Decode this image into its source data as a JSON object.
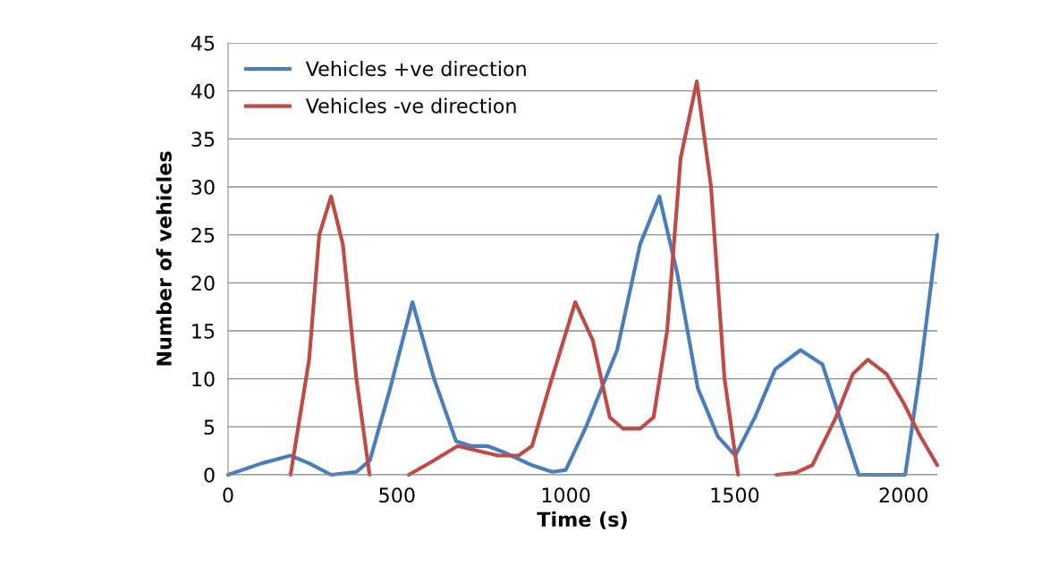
{
  "chart_data": {
    "type": "line",
    "xlabel": "Time (s)",
    "ylabel": "Number of vehicles",
    "xlim": [
      0,
      2100
    ],
    "xticks": [
      0,
      500,
      1000,
      1500,
      2000
    ],
    "ylim": [
      0,
      45
    ],
    "yticks": [
      0,
      5,
      10,
      15,
      20,
      25,
      30,
      35,
      40,
      45
    ],
    "grid": "y",
    "legend": "top left",
    "marker": "none",
    "line_style": "solid",
    "series": [
      {
        "name": "Vehicles +ve direction",
        "color": "#4a7ebb",
        "x": [
          0,
          100,
          185,
          240,
          305,
          380,
          420,
          480,
          546,
          610,
          675,
          720,
          768,
          820,
          900,
          960,
          1000,
          1060,
          1152,
          1220,
          1277,
          1330,
          1391,
          1450,
          1502,
          1560,
          1620,
          1695,
          1760,
          1820,
          1867,
          1910,
          1960,
          2005,
          2050,
          2100
        ],
        "values": [
          0,
          1.2,
          2,
          1.2,
          0,
          0.3,
          1.5,
          9,
          18,
          10,
          3.5,
          3,
          3,
          2.3,
          1,
          0.3,
          0.5,
          5,
          13,
          24,
          29,
          21,
          9,
          4,
          2,
          6,
          11,
          13,
          11.5,
          5,
          0,
          0,
          0,
          0,
          11,
          25
        ]
      },
      {
        "name": "Vehicles -ve direction",
        "color": "#be4b48",
        "x": [
          185,
          240,
          270,
          305,
          340,
          380,
          419,
          470,
          535,
          600,
          680,
          740,
          800,
          860,
          900,
          950,
          1028,
          1080,
          1130,
          1170,
          1220,
          1260,
          1300,
          1340,
          1388,
          1430,
          1470,
          1510,
          1570,
          1624,
          1680,
          1730,
          1800,
          1850,
          1894,
          1950,
          2000,
          2050,
          2100
        ],
        "values": [
          0,
          12,
          25,
          29,
          24,
          10,
          0,
          null,
          0,
          1.3,
          3,
          2.5,
          2,
          2,
          3,
          9,
          18,
          14,
          6,
          4.8,
          4.8,
          6,
          15,
          33,
          41,
          30,
          10,
          0,
          null,
          0,
          0.2,
          1,
          6,
          10.5,
          12,
          10.5,
          7.5,
          4,
          1
        ]
      }
    ]
  }
}
